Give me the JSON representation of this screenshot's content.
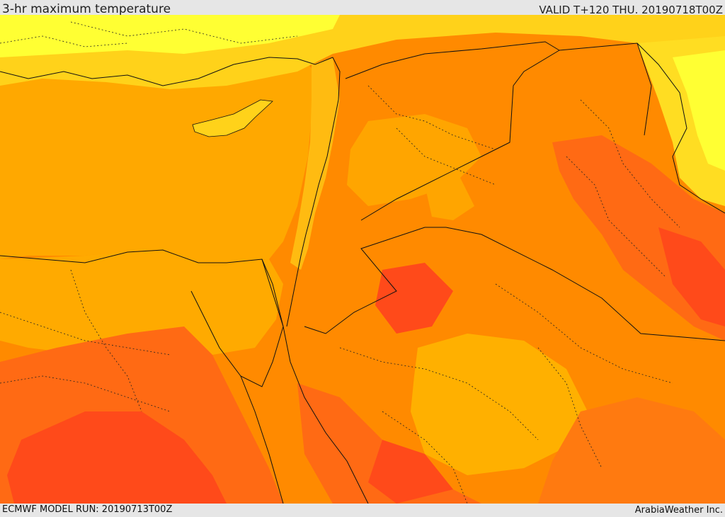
{
  "header": {
    "title": "3-hr maximum temperature",
    "valid": "VALID T+120 THU. 20190718T00Z"
  },
  "footer": {
    "model_run": "ECMWF MODEL RUN: 20190713T00Z",
    "credit": "ArabiaWeather Inc."
  },
  "map": {
    "colors": {
      "cool_yellow": "#ffff33",
      "yellow": "#ffdd22",
      "gold": "#ffbb11",
      "amber": "#ffa200",
      "orange": "#ff8800",
      "red_orange": "#ff6611",
      "red": "#ff3c1a",
      "border_line": "#111111"
    }
  }
}
